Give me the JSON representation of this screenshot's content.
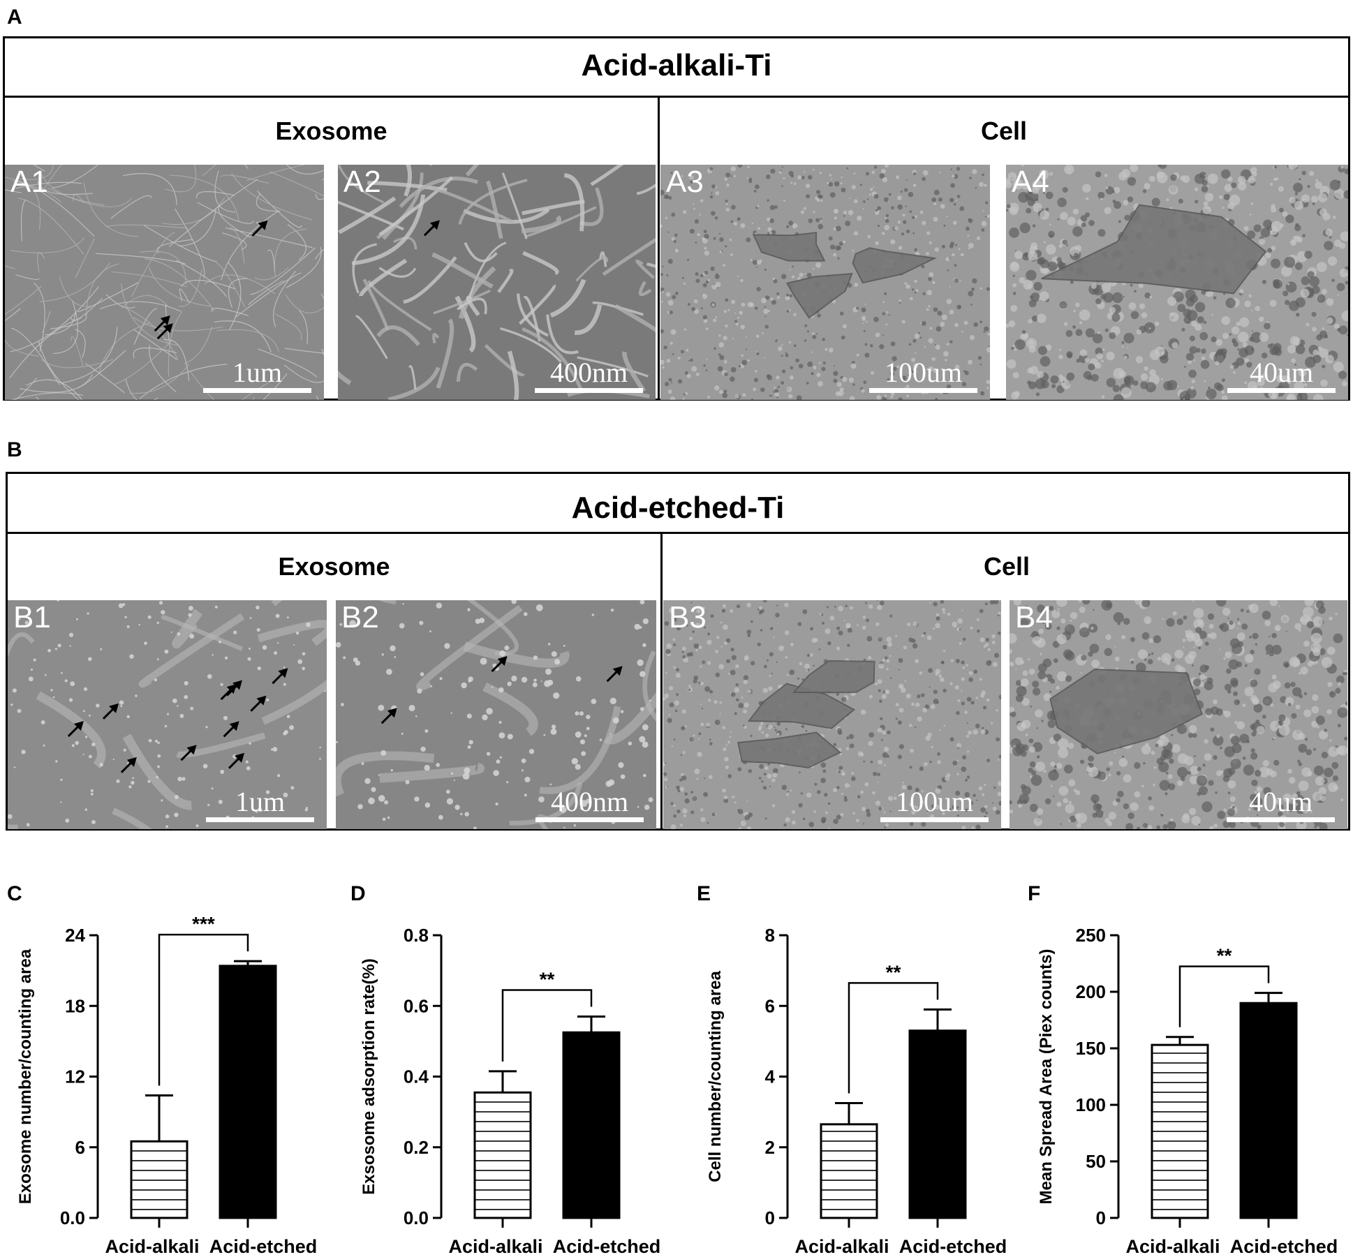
{
  "panel_a": {
    "letter": "A",
    "title": "Acid-alkali-Ti",
    "exosome_label": "Exosome",
    "cell_label": "Cell",
    "images": [
      {
        "label": "A1",
        "scale": "1um",
        "tone": "#8a8a8a",
        "kind": "fibers",
        "arrows": 3
      },
      {
        "label": "A2",
        "scale": "400nm",
        "tone": "#7a7a7a",
        "kind": "fibers-zoom",
        "arrows": 1
      },
      {
        "label": "A3",
        "scale": "100um",
        "tone": "#9a9a9a",
        "kind": "porous-cells",
        "arrows": 0
      },
      {
        "label": "A4",
        "scale": "40um",
        "tone": "#a0a0a0",
        "kind": "porous-cell-zoom",
        "arrows": 0
      }
    ]
  },
  "panel_b": {
    "letter": "B",
    "title": "Acid-etched-Ti",
    "exosome_label": "Exosome",
    "cell_label": "Cell",
    "images": [
      {
        "label": "B1",
        "scale": "1um",
        "tone": "#8c8c8c",
        "kind": "smooth-dots",
        "arrows": 10
      },
      {
        "label": "B2",
        "scale": "400nm",
        "tone": "#868686",
        "kind": "smooth-dots-zoom",
        "arrows": 3
      },
      {
        "label": "B3",
        "scale": "100um",
        "tone": "#9c9c9c",
        "kind": "rough-cells",
        "arrows": 0
      },
      {
        "label": "B4",
        "scale": "40um",
        "tone": "#9e9e9e",
        "kind": "rough-cell-zoom",
        "arrows": 0
      }
    ]
  },
  "chart_data": [
    {
      "panel": "C",
      "type": "bar",
      "categories": [
        "Acid-alkali",
        "Acid-etched"
      ],
      "values": [
        6.5,
        21.4
      ],
      "errors": [
        3.9,
        0.4
      ],
      "ylabel": "Exosome number/counting area",
      "ylim": [
        0,
        24
      ],
      "yticks": [
        "0.0",
        "6",
        "12",
        "18",
        "24"
      ],
      "significance": "***",
      "fills": [
        "hatched",
        "#000000"
      ]
    },
    {
      "panel": "D",
      "type": "bar",
      "categories": [
        "Acid-alkali",
        "Acid-etched"
      ],
      "values": [
        0.355,
        0.525
      ],
      "errors": [
        0.06,
        0.045
      ],
      "ylabel": "Exsosome adsorption rate(%)",
      "ylim": [
        0,
        0.8
      ],
      "yticks": [
        "0.0",
        "0.2",
        "0.4",
        "0.6",
        "0.8"
      ],
      "significance": "**",
      "fills": [
        "hatched",
        "#000000"
      ]
    },
    {
      "panel": "E",
      "type": "bar",
      "categories": [
        "Acid-alkali",
        "Acid-etched"
      ],
      "values": [
        2.65,
        5.3
      ],
      "errors": [
        0.6,
        0.6
      ],
      "ylabel": "Cell number/counting area",
      "ylim": [
        0,
        8
      ],
      "yticks": [
        "0",
        "2",
        "4",
        "6",
        "8"
      ],
      "significance": "**",
      "fills": [
        "hatched",
        "#000000"
      ]
    },
    {
      "panel": "F",
      "type": "bar",
      "categories": [
        "Acid-alkali",
        "Acid-etched"
      ],
      "values": [
        153,
        190
      ],
      "errors": [
        7,
        9
      ],
      "ylabel": "Mean Spread Area (Piex counts)",
      "ylim": [
        0,
        250
      ],
      "yticks": [
        "0",
        "50",
        "100",
        "150",
        "200",
        "250"
      ],
      "significance": "**",
      "fills": [
        "hatched",
        "#000000"
      ]
    }
  ]
}
